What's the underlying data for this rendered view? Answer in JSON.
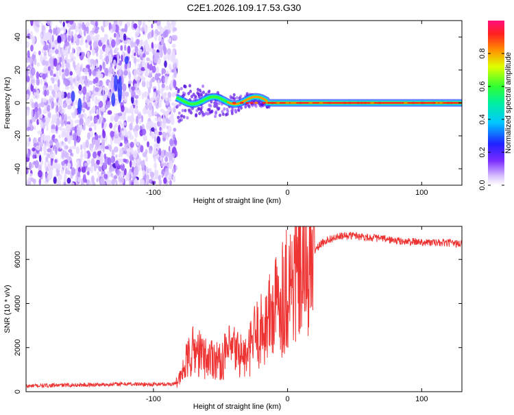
{
  "title": "C2E1.2026.109.17.53.G30",
  "chart_data": [
    {
      "type": "heatmap",
      "title": "C2E1.2026.109.17.53.G30",
      "xlabel": "Height of straight line (km)",
      "ylabel": "Frequency (Hz)",
      "xlim": [
        -195,
        130
      ],
      "ylim": [
        -50,
        50
      ],
      "xticks": [
        -100,
        0,
        100
      ],
      "yticks": [
        -40,
        -20,
        0,
        20,
        40
      ],
      "colorbar": {
        "label": "Normalized spectral amplitude",
        "ticks": [
          0.0,
          0.2,
          0.4,
          0.6,
          0.8
        ],
        "range": [
          0,
          1
        ]
      },
      "features": {
        "noise_region_x": [
          -195,
          -83
        ],
        "signal_start_x": -83,
        "signal_frequency_hz": 0,
        "carrier_band_x": [
          -15,
          130
        ]
      }
    },
    {
      "type": "line",
      "xlabel": "Height of straight line (km)",
      "ylabel": "SNR (10 * v/v)",
      "xlim": [
        -195,
        130
      ],
      "ylim": [
        0,
        7500
      ],
      "xticks": [
        -100,
        0,
        100
      ],
      "yticks": [
        0,
        2000,
        4000,
        6000
      ],
      "color": "#ee3333",
      "series": [
        {
          "name": "SNR",
          "x": [
            -195,
            -180,
            -160,
            -140,
            -120,
            -100,
            -85,
            -80,
            -75,
            -70,
            -65,
            -60,
            -55,
            -50,
            -45,
            -40,
            -35,
            -30,
            -25,
            -20,
            -15,
            -10,
            -5,
            0,
            5,
            10,
            15,
            20,
            25,
            30,
            40,
            50,
            60,
            70,
            80,
            90,
            100,
            110,
            120,
            130
          ],
          "values": [
            250,
            280,
            300,
            320,
            350,
            330,
            350,
            600,
            1400,
            1900,
            1700,
            1500,
            1600,
            1300,
            1800,
            1900,
            1700,
            1500,
            2500,
            2700,
            3200,
            3700,
            4300,
            4800,
            5200,
            5700,
            6100,
            6400,
            6700,
            6900,
            7050,
            7100,
            7000,
            6950,
            6850,
            6800,
            6800,
            6750,
            6750,
            6700
          ]
        }
      ]
    }
  ]
}
